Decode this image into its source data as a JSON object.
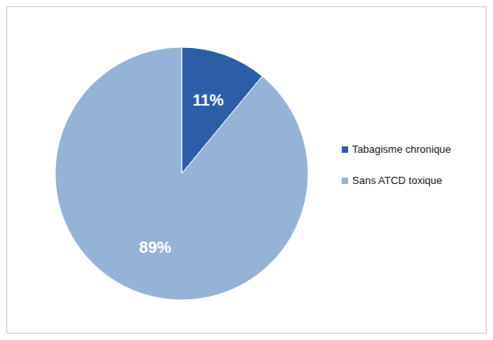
{
  "chart_data": {
    "type": "pie",
    "categories": [
      "Tabagisme chronique",
      "Sans ATCD toxique"
    ],
    "values": [
      11,
      89
    ],
    "value_labels": [
      "11%",
      "89%"
    ],
    "colors": [
      "#2c5ea8",
      "#95b3d7"
    ],
    "data_labels": true,
    "legend": "right"
  }
}
